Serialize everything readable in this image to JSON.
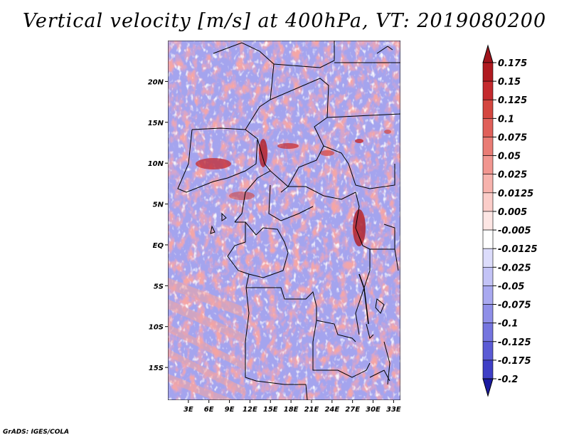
{
  "title": "Vertical velocity [m/s] at 400hPa, VT: 2019080200",
  "credit": "GrADS: IGES/COLA",
  "map": {
    "lon_range": [
      0,
      34
    ],
    "lat_range": [
      -19,
      25
    ],
    "lat_ticks": [
      {
        "value": 20,
        "label": "20N"
      },
      {
        "value": 15,
        "label": "15N"
      },
      {
        "value": 10,
        "label": "10N"
      },
      {
        "value": 5,
        "label": "5N"
      },
      {
        "value": 0,
        "label": "EQ"
      },
      {
        "value": -5,
        "label": "5S"
      },
      {
        "value": -10,
        "label": "10S"
      },
      {
        "value": -15,
        "label": "15S"
      }
    ],
    "lon_ticks": [
      {
        "value": 3,
        "label": "3E"
      },
      {
        "value": 6,
        "label": "6E"
      },
      {
        "value": 9,
        "label": "9E"
      },
      {
        "value": 12,
        "label": "12E"
      },
      {
        "value": 15,
        "label": "15E"
      },
      {
        "value": 18,
        "label": "18E"
      },
      {
        "value": 21,
        "label": "21E"
      },
      {
        "value": 24,
        "label": "24E"
      },
      {
        "value": 27,
        "label": "27E"
      },
      {
        "value": 30,
        "label": "30E"
      },
      {
        "value": 33,
        "label": "33E"
      }
    ]
  },
  "colorbar": {
    "levels": [
      {
        "label": "0.175",
        "color": "#b01a20"
      },
      {
        "label": "0.15",
        "color": "#c42a2e"
      },
      {
        "label": "0.125",
        "color": "#d4463f"
      },
      {
        "label": "0.1",
        "color": "#e0605a"
      },
      {
        "label": "0.075",
        "color": "#e97c75"
      },
      {
        "label": "0.05",
        "color": "#f19690"
      },
      {
        "label": "0.025",
        "color": "#f7b3ad"
      },
      {
        "label": "0.0125",
        "color": "#fbcdc9"
      },
      {
        "label": "0.005",
        "color": "#fde6e4"
      },
      {
        "label": "-0.005",
        "color": "#ffffff"
      },
      {
        "label": "-0.0125",
        "color": "#dcdcfb"
      },
      {
        "label": "-0.025",
        "color": "#c3c3f6"
      },
      {
        "label": "-0.05",
        "color": "#a9a9f0"
      },
      {
        "label": "-0.075",
        "color": "#8f8fe8"
      },
      {
        "label": "-0.1",
        "color": "#7575df"
      },
      {
        "label": "-0.125",
        "color": "#5b5bd5"
      },
      {
        "label": "-0.175",
        "color": "#3f3fc6"
      },
      {
        "label": "-0.2",
        "color": "#2222b0"
      }
    ],
    "top_arrow_color": "#a0141c",
    "bottom_arrow_color": "#1a1aa0"
  }
}
